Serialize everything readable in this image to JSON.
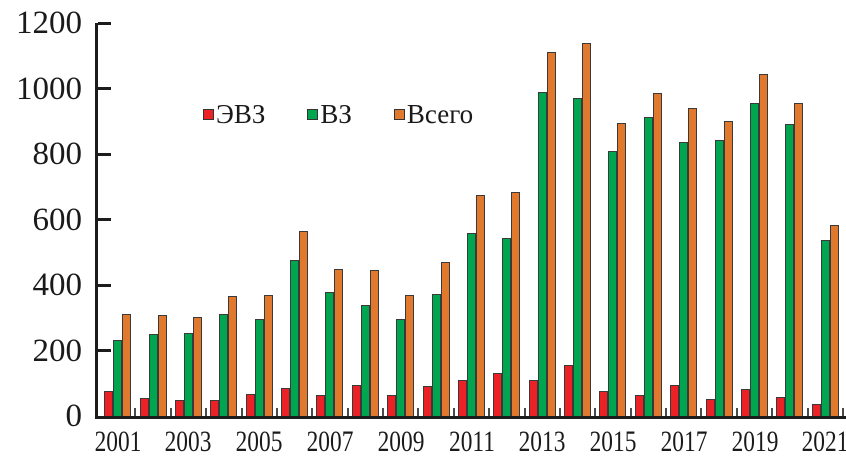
{
  "chart_data": {
    "type": "bar",
    "title": "",
    "xlabel": "",
    "ylabel": "",
    "categories": [
      "2001",
      "2002",
      "2003",
      "2004",
      "2005",
      "2006",
      "2007",
      "2008",
      "2009",
      "2010",
      "2011",
      "2012",
      "2013",
      "2014",
      "2015",
      "2016",
      "2017",
      "2018",
      "2019",
      "2020",
      "2021"
    ],
    "series": [
      {
        "name": "ЭВЗ",
        "color": "#ec2126",
        "values": [
          75,
          55,
          48,
          50,
          67,
          85,
          65,
          95,
          65,
          92,
          110,
          132,
          110,
          156,
          76,
          64,
          96,
          52,
          82,
          58,
          36
        ]
      },
      {
        "name": "ВЗ",
        "color": "#00a64f",
        "values": [
          232,
          251,
          252,
          312,
          297,
          477,
          378,
          340,
          295,
          372,
          558,
          542,
          990,
          972,
          810,
          913,
          837,
          843,
          955,
          892,
          538
        ]
      },
      {
        "name": "Всего",
        "color": "#e0792d",
        "values": [
          310,
          309,
          302,
          365,
          369,
          564,
          450,
          446,
          370,
          470,
          676,
          683,
          1110,
          1140,
          895,
          987,
          939,
          902,
          1045,
          956,
          582
        ]
      }
    ],
    "ylim": [
      0,
      1200
    ],
    "y_ticks": [
      "0",
      "200",
      "400",
      "600",
      "800",
      "1000",
      "1200"
    ],
    "x_tick_labels": [
      "2001",
      "2003",
      "2005",
      "2007",
      "2009",
      "2011",
      "2013",
      "2015",
      "2017",
      "2019",
      "2021"
    ],
    "legend": {
      "position": "inside-top-left",
      "items": [
        "ЭВЗ",
        "ВЗ",
        "Всего"
      ]
    },
    "grid": false,
    "bar_outline_color": "#3a3a3a",
    "axis_color": "#1c1c1c"
  }
}
